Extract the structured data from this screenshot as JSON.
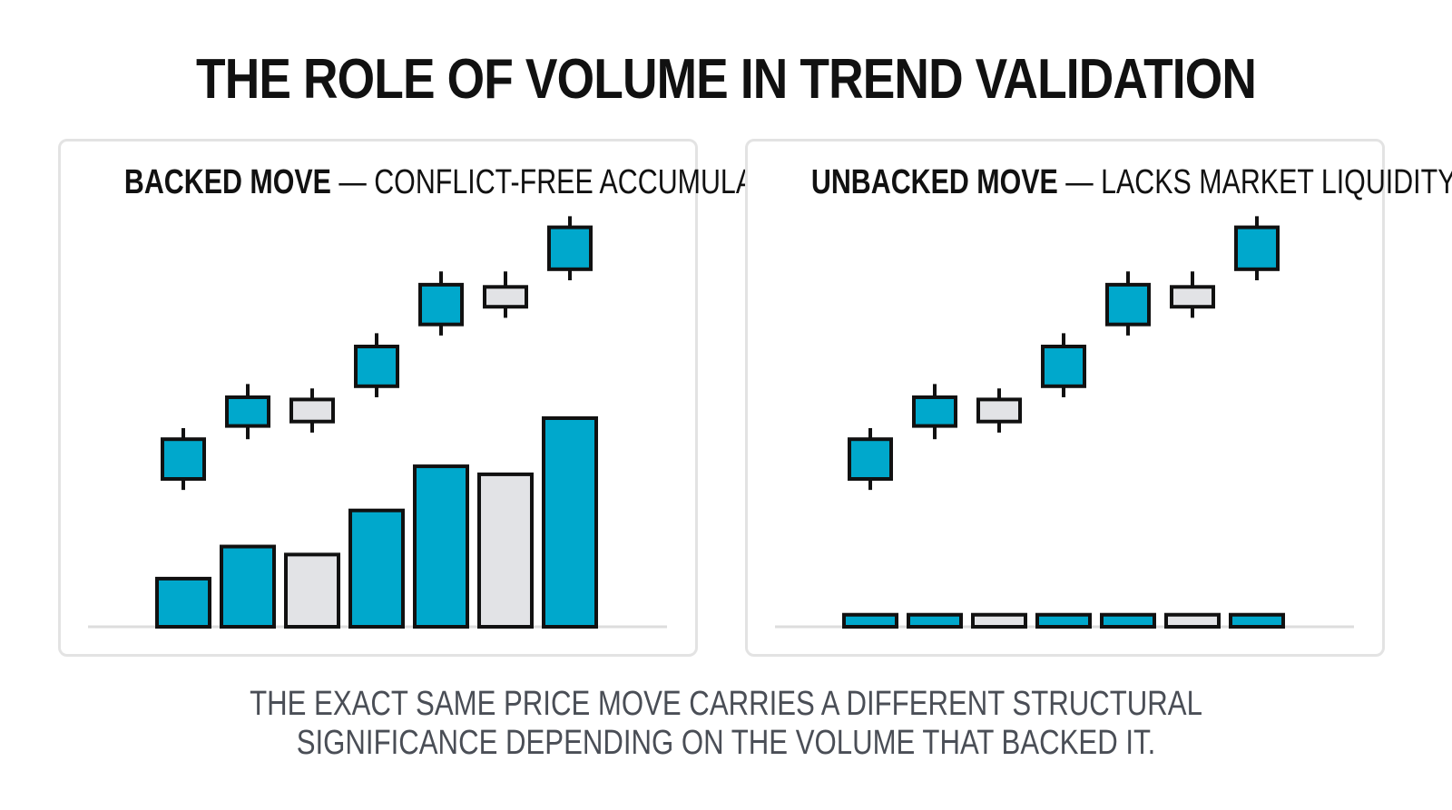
{
  "title": "THE ROLE OF VOLUME IN TREND VALIDATION",
  "caption": {
    "line1": "THE EXACT SAME PRICE MOVE CARRIES A DIFFERENT STRUCTURAL",
    "line2": "SIGNIFICANCE DEPENDING ON THE VOLUME THAT BACKED IT."
  },
  "colors": {
    "up": "#00a8cc",
    "neutral": "#e2e3e6",
    "outline": "#111111",
    "baseline": "#dddddd"
  },
  "chart_data": [
    {
      "type": "candlestick",
      "title_bold": "BACKED MOVE",
      "title_rest": " — CONFLICT-FREE ACCUMULATION",
      "candles": [
        {
          "open": 30,
          "close": 48,
          "low": 25,
          "high": 53,
          "color": "up"
        },
        {
          "open": 54,
          "close": 67,
          "low": 48,
          "high": 73,
          "color": "up"
        },
        {
          "open": 56,
          "close": 66,
          "low": 51,
          "high": 71,
          "color": "neutral"
        },
        {
          "open": 72,
          "close": 90,
          "low": 67,
          "high": 96,
          "color": "up"
        },
        {
          "open": 100,
          "close": 118,
          "low": 95,
          "high": 124,
          "color": "up"
        },
        {
          "open": 108,
          "close": 117,
          "low": 103,
          "high": 124,
          "color": "neutral"
        },
        {
          "open": 125,
          "close": 144,
          "low": 120,
          "high": 149,
          "color": "up"
        }
      ],
      "volume": [
        12,
        20,
        18,
        29,
        40,
        38,
        52
      ],
      "price_range": [
        0,
        150
      ],
      "volume_range": [
        0,
        52
      ]
    },
    {
      "type": "candlestick",
      "title_bold": "UNBACKED MOVE",
      "title_rest": " — LACKS MARKET LIQUIDITY",
      "candles": [
        {
          "open": 30,
          "close": 48,
          "low": 25,
          "high": 53,
          "color": "up"
        },
        {
          "open": 54,
          "close": 67,
          "low": 48,
          "high": 73,
          "color": "up"
        },
        {
          "open": 56,
          "close": 66,
          "low": 51,
          "high": 71,
          "color": "neutral"
        },
        {
          "open": 72,
          "close": 90,
          "low": 67,
          "high": 96,
          "color": "up"
        },
        {
          "open": 100,
          "close": 118,
          "low": 95,
          "high": 124,
          "color": "up"
        },
        {
          "open": 108,
          "close": 117,
          "low": 103,
          "high": 124,
          "color": "neutral"
        },
        {
          "open": 125,
          "close": 144,
          "low": 120,
          "high": 149,
          "color": "up"
        }
      ],
      "volume": [
        3,
        3,
        3,
        3,
        3,
        3,
        3
      ],
      "price_range": [
        0,
        150
      ],
      "volume_range": [
        0,
        52
      ]
    }
  ]
}
